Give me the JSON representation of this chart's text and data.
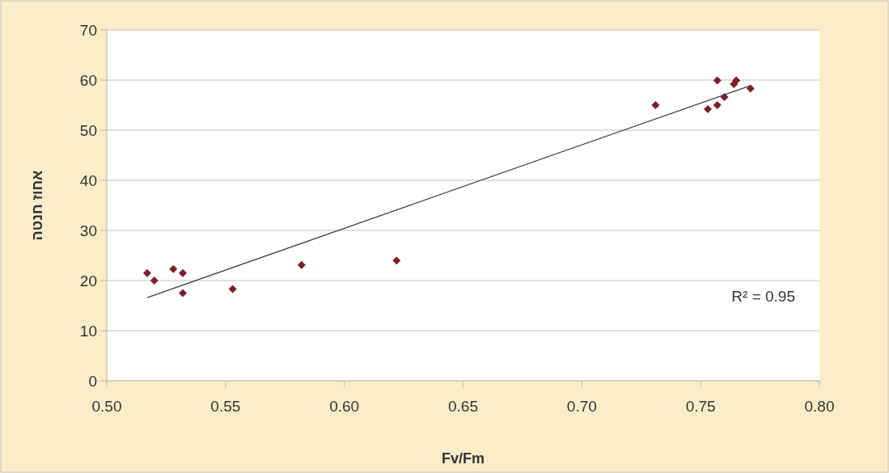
{
  "chart_data": {
    "type": "scatter",
    "xlabel": "Fv/Fm",
    "ylabel": "אחוז חנטה",
    "xlim": [
      0.5,
      0.8
    ],
    "xticks": [
      {
        "value": 0.5,
        "label": "0.50"
      },
      {
        "value": 0.55,
        "label": "0.55"
      },
      {
        "value": 0.6,
        "label": "0.60"
      },
      {
        "value": 0.65,
        "label": "0.65"
      },
      {
        "value": 0.7,
        "label": "0.70"
      },
      {
        "value": 0.75,
        "label": "0.75"
      },
      {
        "value": 0.8,
        "label": "0.80"
      }
    ],
    "ylim": [
      0,
      70
    ],
    "yticks": [
      0,
      10,
      20,
      30,
      40,
      50,
      60,
      70
    ],
    "grid": "y",
    "series": [
      {
        "marker": "diamond",
        "color": "#7a1f2b",
        "x": [
          0.517,
          0.52,
          0.528,
          0.532,
          0.532,
          0.553,
          0.582,
          0.622,
          0.731,
          0.753,
          0.757,
          0.757,
          0.76,
          0.764,
          0.765,
          0.771
        ],
        "values": [
          21.5,
          20.0,
          22.3,
          21.5,
          17.5,
          18.3,
          23.1,
          24.0,
          55.0,
          54.2,
          55.0,
          59.9,
          56.6,
          59.2,
          59.9,
          58.3
        ]
      },
      {
        "type": "line",
        "color": "#404040",
        "x": [
          0.517,
          0.771
        ],
        "values": [
          16.6,
          58.9
        ]
      }
    ],
    "annotations": [
      "R² = 0.95"
    ]
  }
}
